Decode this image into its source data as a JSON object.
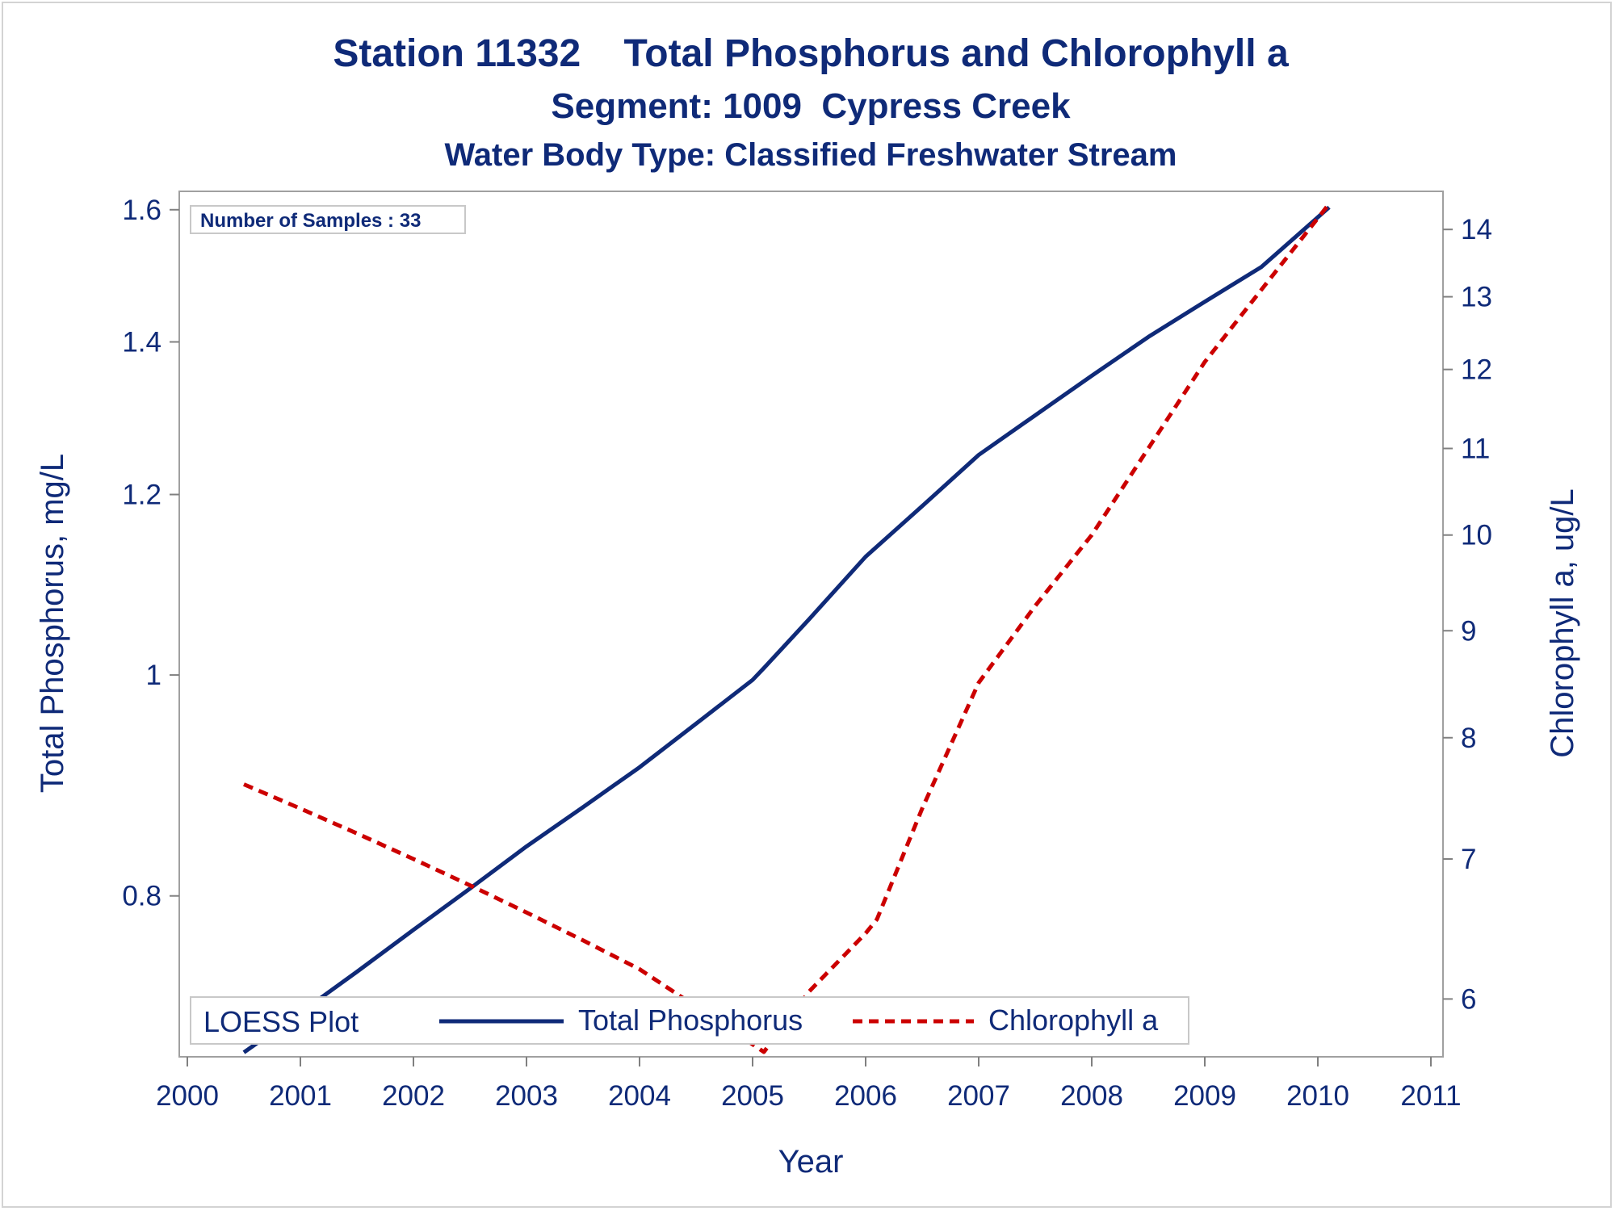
{
  "chart_data": {
    "type": "line",
    "title": "Station 11332    Total Phosphorus and Chlorophyll a",
    "subtitle": "Segment: 1009  Cypress Creek",
    "subtitle2": "Water Body Type: Classified Freshwater Stream",
    "xlabel": "Year",
    "ylabel_left": "Total Phosphorus, mg/L",
    "ylabel_right": "Chlorophyll a, ug/L",
    "annotation": "Number of Samples : 33",
    "legend_title": "LOESS Plot",
    "legend_placement": "bottom-inside",
    "x_ticks": [
      "2000",
      "2001",
      "2002",
      "2003",
      "2004",
      "2005",
      "2006",
      "2007",
      "2008",
      "2009",
      "2010",
      "2011"
    ],
    "y_left_ticks": [
      "0.8",
      "1",
      "1.2",
      "1.4",
      "1.6"
    ],
    "y_right_ticks": [
      "6",
      "7",
      "8",
      "9",
      "10",
      "11",
      "12",
      "13",
      "14"
    ],
    "xlim": [
      2000,
      2011
    ],
    "y_left_lim": [
      0.68,
      1.63
    ],
    "y_left_scale": "log",
    "y_right_lim": [
      5.63,
      14.6
    ],
    "y_right_scale": "log",
    "grid": false,
    "series": [
      {
        "name": "Total Phosphorus",
        "axis": "left",
        "color": "#0f2a78",
        "style": "solid",
        "points": [
          [
            2000.5,
            0.683
          ],
          [
            2001.0,
            0.711
          ],
          [
            2001.5,
            0.741
          ],
          [
            2002.0,
            0.773
          ],
          [
            2002.5,
            0.806
          ],
          [
            2003.0,
            0.841
          ],
          [
            2003.5,
            0.875
          ],
          [
            2004.0,
            0.911
          ],
          [
            2004.5,
            0.952
          ],
          [
            2005.0,
            0.995
          ],
          [
            2005.1,
            1.007
          ],
          [
            2005.5,
            1.058
          ],
          [
            2006.0,
            1.127
          ],
          [
            2006.5,
            1.186
          ],
          [
            2007.0,
            1.249
          ],
          [
            2007.5,
            1.3
          ],
          [
            2008.0,
            1.353
          ],
          [
            2008.5,
            1.407
          ],
          [
            2009.0,
            1.458
          ],
          [
            2009.5,
            1.51
          ],
          [
            2010.1,
            1.604
          ]
        ]
      },
      {
        "name": "Chlorophyll a",
        "axis": "right",
        "color": "#cc0000",
        "style": "dashed",
        "points": [
          [
            2000.5,
            7.6
          ],
          [
            2001.0,
            7.4
          ],
          [
            2001.5,
            7.2
          ],
          [
            2002.0,
            7.0
          ],
          [
            2002.5,
            6.8
          ],
          [
            2003.0,
            6.6
          ],
          [
            2003.5,
            6.4
          ],
          [
            2004.0,
            6.2
          ],
          [
            2004.5,
            5.95
          ],
          [
            2005.1,
            5.66
          ],
          [
            2005.5,
            6.05
          ],
          [
            2006.0,
            6.45
          ],
          [
            2006.1,
            6.55
          ],
          [
            2006.5,
            7.4
          ],
          [
            2007.0,
            8.5
          ],
          [
            2007.5,
            9.25
          ],
          [
            2008.0,
            10.0
          ],
          [
            2008.5,
            11.0
          ],
          [
            2009.0,
            12.1
          ],
          [
            2009.5,
            13.1
          ],
          [
            2010.1,
            14.4
          ]
        ]
      }
    ]
  }
}
